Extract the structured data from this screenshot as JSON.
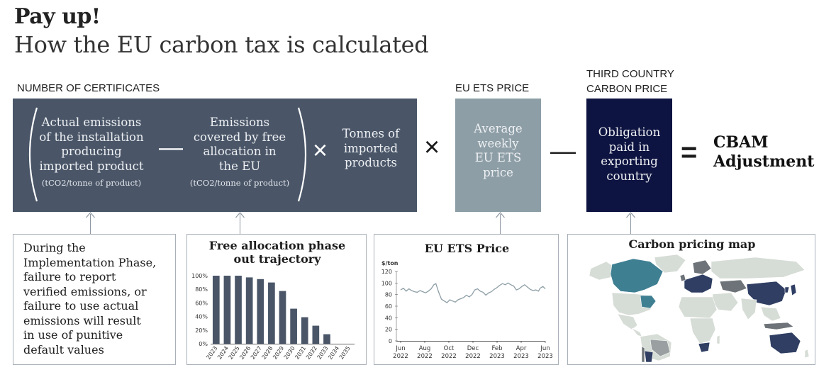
{
  "header": {
    "title": "Pay up!",
    "subtitle": "How the EU carbon tax is calculated"
  },
  "labels": {
    "certificates": "NUMBER OF CERTIFICATES",
    "ets_price": "EU ETS PRICE",
    "third_country_line1": "THIRD COUNTRY",
    "third_country_line2": "CARBON PRICE"
  },
  "formula": {
    "actual_emissions": [
      "Actual emissions",
      "of the installation",
      "producing",
      "imported product"
    ],
    "actual_unit": "(tCO2/tonne of product)",
    "minus_1": "—",
    "free_allocation": [
      "Emissions",
      "covered by free",
      "allocation in",
      "the EU"
    ],
    "free_unit": "(tCO2/tonne of product)",
    "times_1": "×",
    "tonnes": [
      "Tonnes of",
      "imported",
      "products"
    ],
    "times_2": "×",
    "ets": [
      "Average",
      "weekly",
      "EU ETS",
      "price"
    ],
    "minus_2": "—",
    "obligation": [
      "Obligation",
      "paid in",
      "exporting",
      "country"
    ],
    "equals": "=",
    "result": [
      "CBAM",
      "Adjustment"
    ]
  },
  "note": {
    "lines": [
      "During the",
      "Implementation Phase,",
      "failure to report",
      "verified emissions, or",
      "failure to use actual",
      "emissions will result",
      "in use of punitive",
      "default values"
    ]
  },
  "free_allocation_chart": {
    "title_lines": [
      "Free allocation phase",
      "out trajectory"
    ],
    "colors": {
      "bar": "#4a5668"
    }
  },
  "ets_chart": {
    "title": "EU ETS Price",
    "unit_label": "$/ton",
    "colors": {
      "line": "#8d9ea6"
    }
  },
  "map_card": {
    "title": "Carbon pricing map",
    "colors": {
      "base": "#d6dcd6",
      "teal": "#3f7f92",
      "dark": "#2f3e62",
      "mid": "#6d7378",
      "grey": "#9aa0a2"
    }
  },
  "chart_data": [
    {
      "type": "bar",
      "title": "Free allocation phase out trajectory",
      "categories": [
        "2023",
        "2024",
        "2025",
        "2026",
        "2027",
        "2028",
        "2029",
        "2030",
        "2031",
        "2032",
        "2033",
        "2034",
        "2035"
      ],
      "values": [
        100,
        100,
        100,
        97.5,
        95,
        90,
        77.5,
        51.5,
        39,
        26.5,
        14,
        0,
        0
      ],
      "yticks": [
        "100%",
        "80%",
        "60%",
        "40%",
        "20%",
        "0%"
      ],
      "ylim": [
        0,
        100
      ]
    },
    {
      "type": "line",
      "title": "EU ETS Price",
      "ylabel": "$/ton",
      "ylim": [
        0,
        120
      ],
      "yticks": [
        "120",
        "100",
        "80",
        "60",
        "40",
        "20",
        "0"
      ],
      "xticks": [
        {
          "month": "Jun",
          "year": "2022"
        },
        {
          "month": "Aug",
          "year": "2022"
        },
        {
          "month": "Oct",
          "year": "2022"
        },
        {
          "month": "Dec",
          "year": "2022"
        },
        {
          "month": "Feb",
          "year": "2023"
        },
        {
          "month": "Apr",
          "year": "2023"
        },
        {
          "month": "Jun",
          "year": "2023"
        }
      ],
      "x_start": "2022-06-01",
      "x_end": "2023-06-01",
      "points": [
        [
          "2022-06-01",
          88
        ],
        [
          "2022-06-08",
          91
        ],
        [
          "2022-06-15",
          86
        ],
        [
          "2022-06-22",
          90
        ],
        [
          "2022-06-29",
          87
        ],
        [
          "2022-07-06",
          85
        ],
        [
          "2022-07-13",
          84
        ],
        [
          "2022-07-20",
          87
        ],
        [
          "2022-07-27",
          85
        ],
        [
          "2022-08-03",
          83
        ],
        [
          "2022-08-10",
          86
        ],
        [
          "2022-08-17",
          90
        ],
        [
          "2022-08-24",
          97
        ],
        [
          "2022-08-29",
          99
        ],
        [
          "2022-09-05",
          84
        ],
        [
          "2022-09-12",
          72
        ],
        [
          "2022-09-19",
          69
        ],
        [
          "2022-09-26",
          66
        ],
        [
          "2022-10-03",
          71
        ],
        [
          "2022-10-10",
          69
        ],
        [
          "2022-10-17",
          67
        ],
        [
          "2022-10-24",
          71
        ],
        [
          "2022-10-31",
          73
        ],
        [
          "2022-11-07",
          75
        ],
        [
          "2022-11-14",
          79
        ],
        [
          "2022-11-21",
          76
        ],
        [
          "2022-11-28",
          80
        ],
        [
          "2022-12-05",
          88
        ],
        [
          "2022-12-12",
          90
        ],
        [
          "2022-12-19",
          86
        ],
        [
          "2022-12-26",
          84
        ],
        [
          "2023-01-02",
          79
        ],
        [
          "2023-01-09",
          83
        ],
        [
          "2023-01-16",
          85
        ],
        [
          "2023-01-23",
          89
        ],
        [
          "2023-01-30",
          92
        ],
        [
          "2023-02-06",
          96
        ],
        [
          "2023-02-13",
          99
        ],
        [
          "2023-02-20",
          97
        ],
        [
          "2023-02-27",
          100
        ],
        [
          "2023-03-06",
          97
        ],
        [
          "2023-03-13",
          95
        ],
        [
          "2023-03-20",
          88
        ],
        [
          "2023-03-27",
          90
        ],
        [
          "2023-04-03",
          94
        ],
        [
          "2023-04-10",
          97
        ],
        [
          "2023-04-17",
          93
        ],
        [
          "2023-04-24",
          89
        ],
        [
          "2023-05-01",
          87
        ],
        [
          "2023-05-08",
          88
        ],
        [
          "2023-05-15",
          86
        ],
        [
          "2023-05-19",
          91
        ],
        [
          "2023-05-26",
          94
        ],
        [
          "2023-06-01",
          90
        ]
      ]
    }
  ]
}
